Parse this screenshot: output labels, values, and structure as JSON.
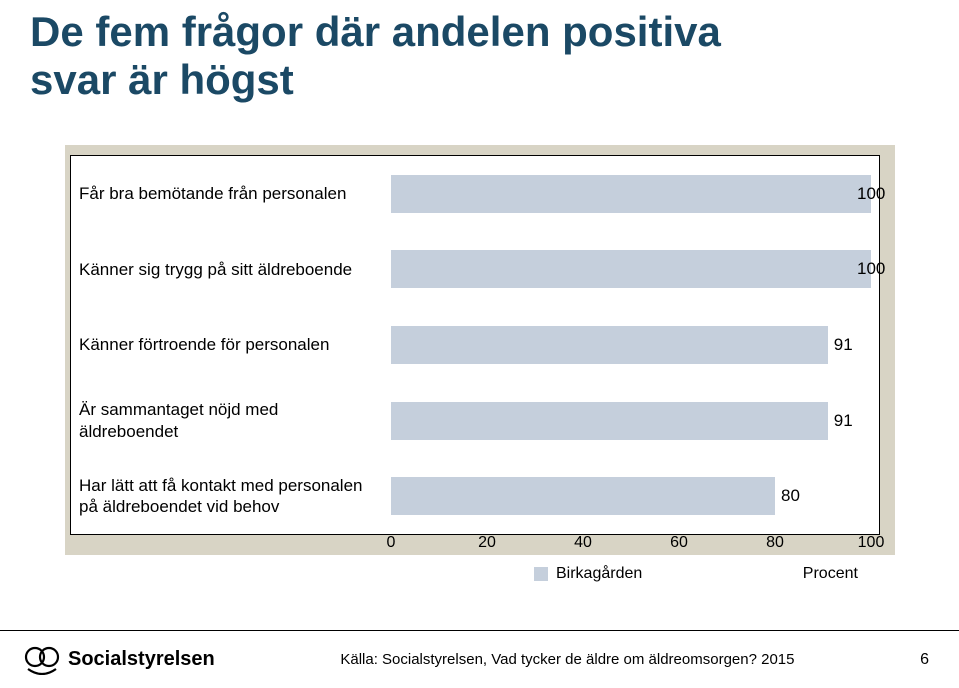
{
  "title_line1": "De fem frågor där andelen positiva",
  "title_line2": "svar är högst",
  "title_color": "#1b4965",
  "chart": {
    "type": "bar",
    "orientation": "horizontal",
    "panel_bg": "#d8d4c5",
    "plot_bg": "#ffffff",
    "plot_border": "#000000",
    "bar_color": "#c5cfdc",
    "label_fontsize": 17,
    "value_fontsize": 17,
    "tick_fontsize": 16,
    "xlim": [
      0,
      100
    ],
    "xtick_step": 20,
    "xticks": [
      0,
      20,
      40,
      60,
      80,
      100
    ],
    "xlabel": "Procent",
    "legend_label": "Birkagården",
    "legend_swatch_color": "#c5cfdc",
    "categories": [
      "Får bra bemötande från personalen",
      "Känner sig trygg på sitt äldreboende",
      "Känner förtroende för personalen",
      "Är sammantaget nöjd med äldreboendet",
      "Har lätt att få kontakt med personalen på äldreboendet vid behov"
    ],
    "values": [
      100,
      100,
      91,
      91,
      80
    ]
  },
  "footer": {
    "logo_text": "Socialstyrelsen",
    "source": "Källa: Socialstyrelsen, Vad tycker de äldre om äldreomsorgen? 2015",
    "page": "6"
  }
}
